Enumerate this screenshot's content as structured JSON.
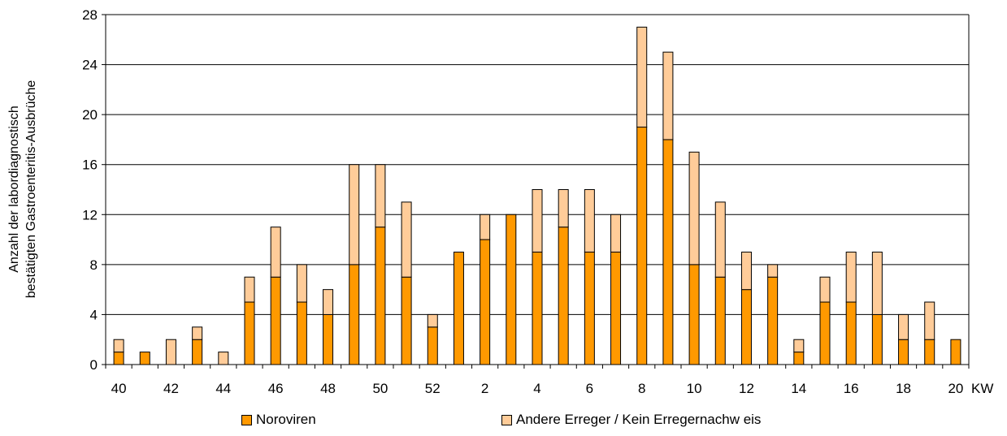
{
  "chart_data": {
    "type": "bar",
    "stacked": true,
    "ylabel_lines": [
      "Anzahl der labordiagnostisch",
      "bestätigten Gastroenteritis-Ausbrüche"
    ],
    "xlabel": "KW",
    "ylim": [
      0,
      28
    ],
    "yticks": [
      0,
      4,
      8,
      12,
      16,
      20,
      24,
      28
    ],
    "grid": true,
    "categories": [
      "40",
      "41",
      "42",
      "43",
      "44",
      "45",
      "46",
      "47",
      "48",
      "49",
      "50",
      "51",
      "52",
      "1",
      "2",
      "3",
      "4",
      "5",
      "6",
      "7",
      "8",
      "9",
      "10",
      "11",
      "12",
      "13",
      "14",
      "15",
      "16",
      "17",
      "18",
      "19",
      "20"
    ],
    "xtick_labels": [
      "40",
      "42",
      "44",
      "46",
      "48",
      "50",
      "52",
      "2",
      "4",
      "6",
      "8",
      "10",
      "12",
      "14",
      "16",
      "18",
      "20"
    ],
    "series": [
      {
        "name": "Noroviren",
        "color": "#FF9900",
        "values": [
          1,
          1,
          0,
          2,
          0,
          5,
          7,
          5,
          4,
          8,
          11,
          7,
          3,
          9,
          10,
          12,
          9,
          11,
          9,
          9,
          19,
          18,
          8,
          7,
          6,
          7,
          1,
          5,
          5,
          4,
          2,
          2,
          2
        ]
      },
      {
        "name": "Andere Erreger / Kein Erregernachw eis",
        "color": "#FFCC99",
        "values": [
          1,
          0,
          2,
          1,
          1,
          2,
          4,
          3,
          2,
          8,
          5,
          6,
          1,
          0,
          2,
          0,
          5,
          3,
          5,
          3,
          8,
          7,
          9,
          6,
          3,
          1,
          1,
          2,
          4,
          5,
          2,
          3,
          0
        ]
      }
    ],
    "legend_position": "bottom"
  }
}
